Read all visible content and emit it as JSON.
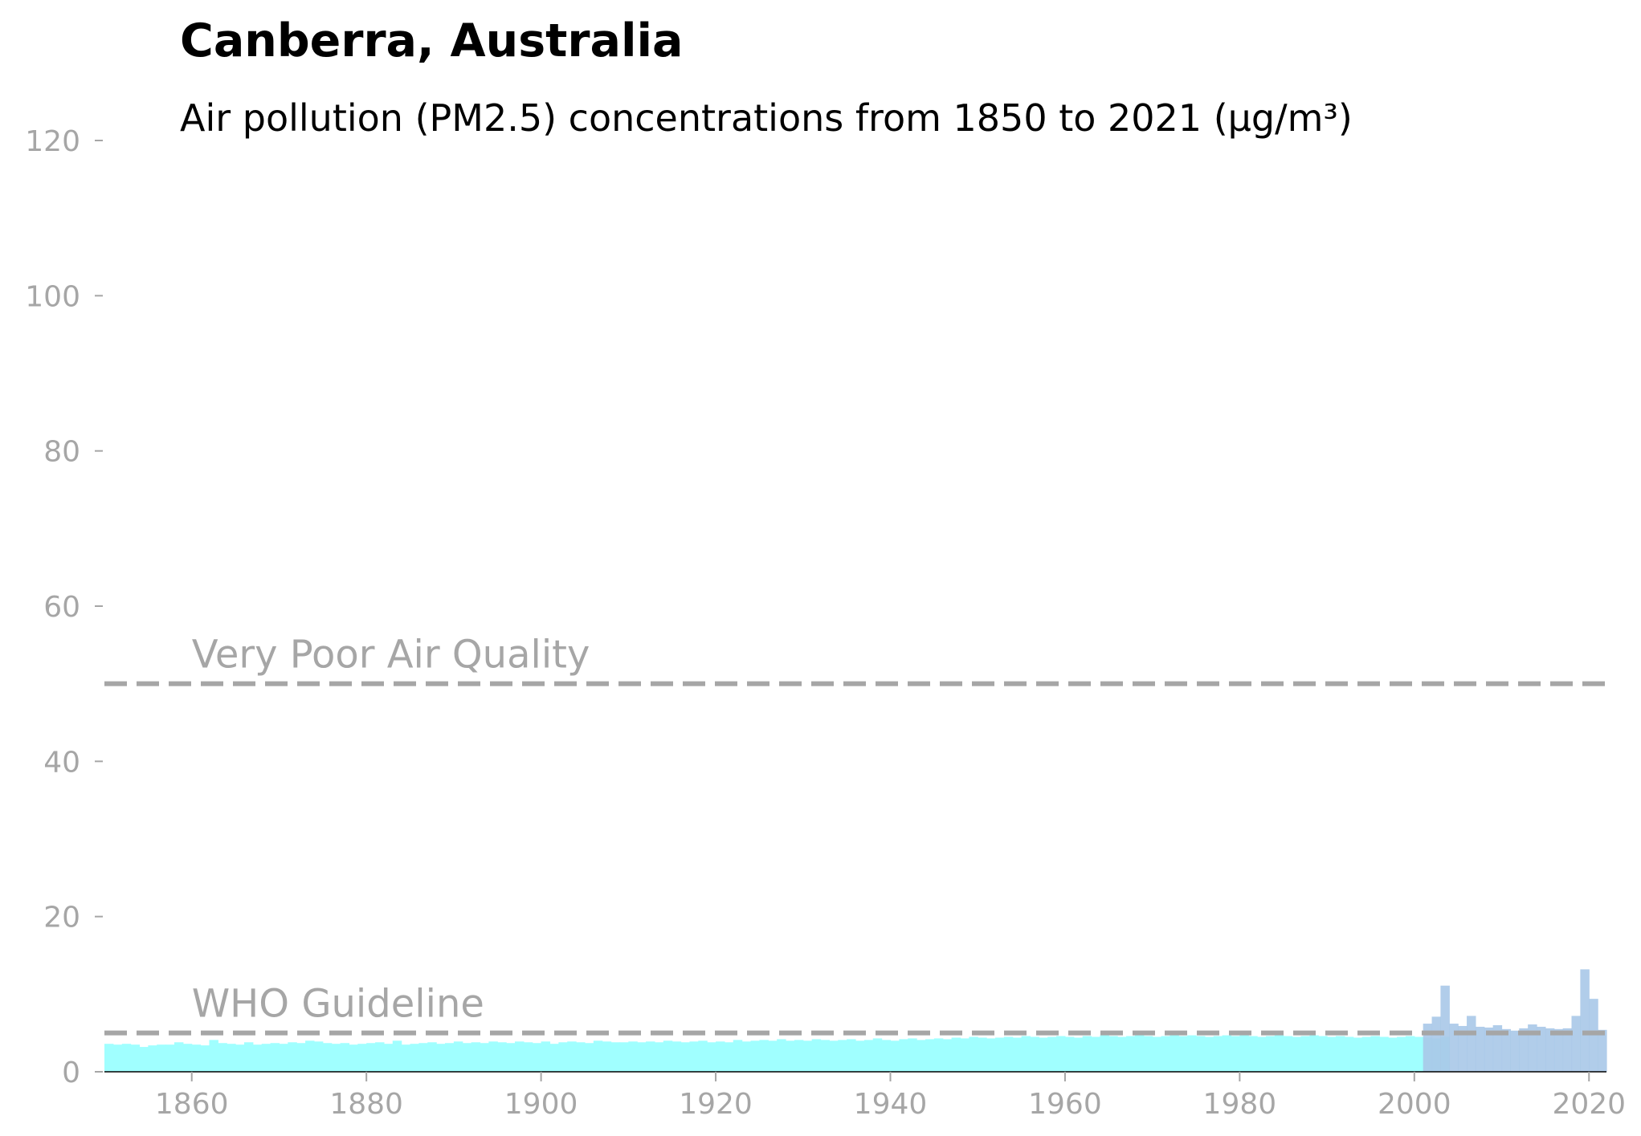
{
  "chart_data": {
    "type": "bar",
    "title": "Canberra, Australia",
    "subtitle": "Air pollution (PM2.5) concentrations from 1850 to 2021 (µg/m³)",
    "xlabel": "",
    "ylabel": "",
    "xlim": [
      1850,
      2022
    ],
    "ylim": [
      0,
      120
    ],
    "xticks": [
      1860,
      1880,
      1900,
      1920,
      1940,
      1960,
      1980,
      2000,
      2020
    ],
    "yticks": [
      0,
      20,
      40,
      60,
      80,
      100,
      120
    ],
    "grid": false,
    "reference_lines": [
      {
        "label": "Very Poor Air Quality",
        "value": 50
      },
      {
        "label": "WHO Guideline",
        "value": 5
      }
    ],
    "colors": {
      "modeled": "#a0ffff",
      "measured": "#a8c8e8",
      "reference": "#a6a6a6",
      "reference_faded": "#ececec",
      "axis_text": "#a6a6a6"
    },
    "series": [
      {
        "x_start": 1850,
        "values": [
          3.6,
          3.5,
          3.6,
          3.5,
          3.2,
          3.4,
          3.5,
          3.5,
          3.8,
          3.6,
          3.5,
          3.4,
          4.1,
          3.7,
          3.6,
          3.5,
          3.8,
          3.5,
          3.6,
          3.7,
          3.6,
          3.8,
          3.7,
          4.0,
          3.9,
          3.7,
          3.6,
          3.7,
          3.5,
          3.6,
          3.7,
          3.8,
          3.6,
          4.0,
          3.5,
          3.6,
          3.7,
          3.8,
          3.6,
          3.7,
          3.9,
          3.7,
          3.8,
          3.7,
          3.9,
          3.8,
          3.7,
          3.9,
          3.8,
          3.7,
          3.9,
          3.6,
          3.8,
          3.9,
          3.8,
          3.7,
          4.0,
          3.9,
          3.8,
          3.8,
          3.9,
          3.8,
          3.9,
          3.8,
          4.0,
          3.9,
          3.8,
          3.9,
          4.0,
          3.8,
          3.9,
          3.8,
          4.1,
          3.9,
          4.0,
          4.1,
          4.0,
          4.2,
          4.0,
          4.1,
          4.0,
          4.2,
          4.1,
          4.0,
          4.1,
          4.2,
          4.0,
          4.1,
          4.3,
          4.1,
          4.0,
          4.2,
          4.3,
          4.1,
          4.2,
          4.3,
          4.2,
          4.4,
          4.3,
          4.5,
          4.4,
          4.3,
          4.4,
          4.5,
          4.4,
          4.6,
          4.5,
          4.4,
          4.5,
          4.6,
          4.5,
          4.4,
          4.6,
          4.5,
          4.7,
          4.6,
          4.5,
          4.6,
          4.7,
          4.6,
          4.5,
          4.6,
          4.7,
          4.6,
          4.7,
          4.6,
          4.5,
          4.6,
          4.7,
          4.6,
          4.7,
          4.6,
          4.5,
          4.6,
          4.7,
          4.6,
          4.5,
          4.6,
          4.7,
          4.6,
          4.5,
          4.6,
          4.5,
          4.4,
          4.5,
          4.6,
          4.5,
          4.4,
          4.5,
          4.6,
          4.5,
          4.4,
          4.3,
          4.5
        ]
      },
      {
        "x_start": 2001,
        "values": [
          6.2,
          7.1,
          11.1,
          6.2,
          5.9,
          7.2,
          5.8,
          5.7,
          6.0,
          5.5,
          5.3,
          5.6,
          6.1,
          5.8,
          5.6,
          5.5,
          5.6,
          7.2,
          13.2,
          9.4,
          5.4
        ]
      }
    ]
  }
}
